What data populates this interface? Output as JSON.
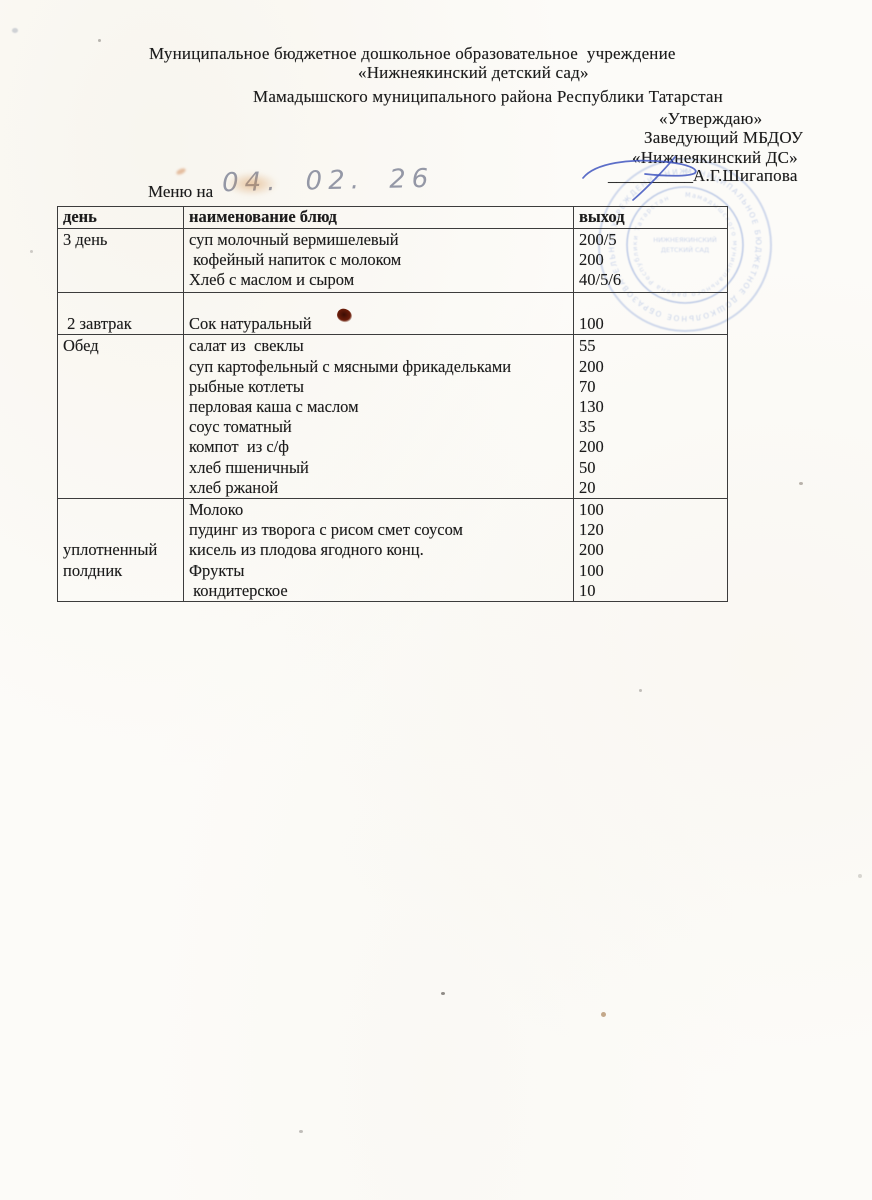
{
  "document": {
    "org_lines": [
      "Муниципальное бюджетное дошкольное образовательное  учреждение",
      "«Нижнеякинский детский сад»",
      "Мамадышского муниципального района Республики Татарстан"
    ],
    "approval": {
      "approve_label": "«Утверждаю»",
      "position": "Заведующий МБДОУ",
      "org_short": "«Нижнеякинский ДС»",
      "signature_line": "__________",
      "signer_name": "А.Г.Шигапова"
    },
    "menu_label": "Меню на",
    "menu_date_handwritten": "04. 02. 26"
  },
  "menu_table": {
    "headers": [
      "день",
      "наименование блюд",
      "выход"
    ],
    "rows": [
      {
        "day": "3 день",
        "dishes": [
          "суп молочный вермишелевый",
          " кофейный напиток с молоком",
          "Хлеб с маслом и сыром"
        ],
        "outputs": [
          "200/5",
          "200",
          "40/5/6"
        ]
      },
      {
        "day": "\n 2 завтрак",
        "dishes": [
          "",
          "Сок натуральный"
        ],
        "outputs": [
          "",
          "100"
        ]
      },
      {
        "day": "Обед",
        "dishes": [
          "салат из  свеклы",
          "суп картофельный с мясными фрикадельками",
          "рыбные котлеты",
          "перловая каша с маслом",
          "соус томатный",
          "компот  из с/ф",
          "хлеб пшеничный",
          "хлеб ржаной"
        ],
        "outputs": [
          "55",
          "200",
          "70",
          "130",
          "35",
          "200",
          "50",
          "20"
        ]
      },
      {
        "day": "\n\nуплотненный\nполдник",
        "dishes": [
          "Молоко",
          "пудинг из творога с рисом смет соусом",
          "кисель из плодова ягодного конц.",
          "Фрукты",
          " кондитерское"
        ],
        "outputs": [
          "100",
          "120",
          "200",
          "100",
          "10"
        ]
      }
    ]
  },
  "colors": {
    "ink": "#1c1c1c",
    "table_border": "#3c3c3c",
    "stamp_blue": "#8fa6d9",
    "signature_blue": "#3f55c0",
    "blot_brown": "#57150a",
    "date_pencil": "#878b9c"
  }
}
